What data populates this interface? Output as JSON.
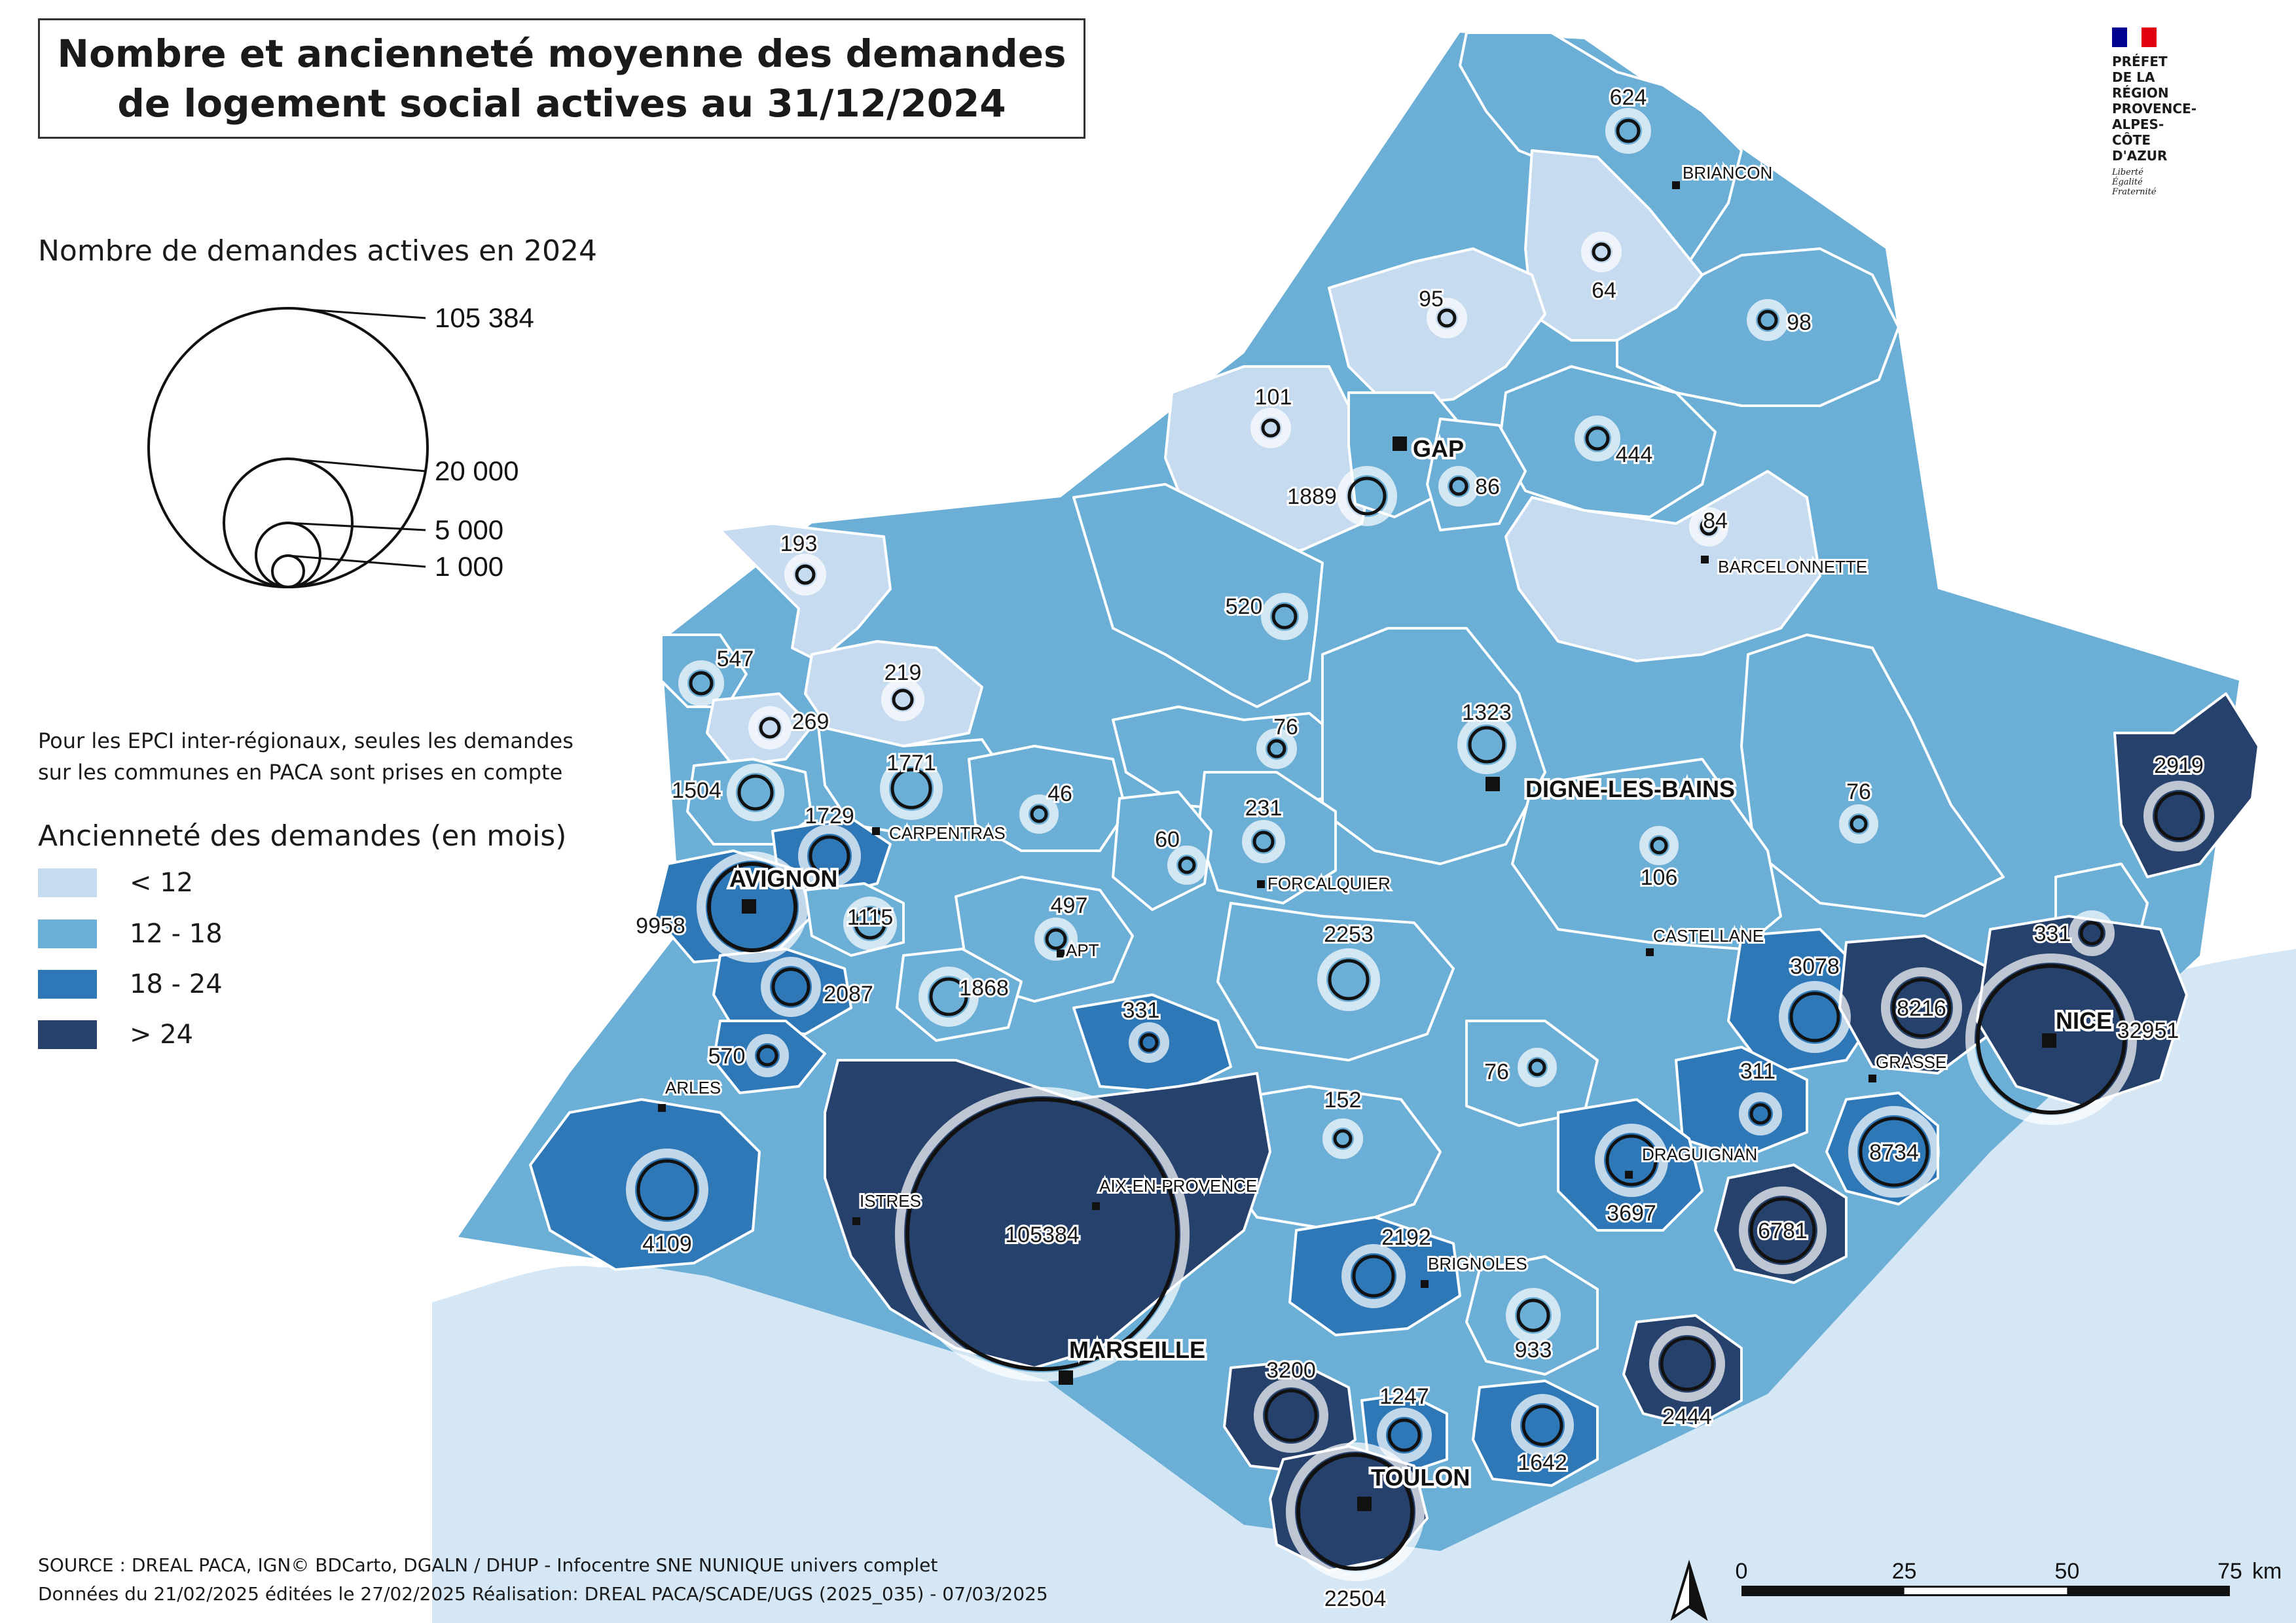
{
  "title": {
    "line1": "Nombre et ancienneté moyenne des demandes",
    "line2": "de logement social actives au 31/12/2024"
  },
  "logo": {
    "organization": "PRÉFET\nDE LA RÉGION\nPROVENCE-ALPES-\nCÔTE D'AZUR",
    "motto": "Liberté\nÉgalité\nFraternité",
    "flag_colors": [
      "#000091",
      "#ffffff",
      "#e1000f"
    ]
  },
  "legend_size": {
    "title": "Nombre de demandes actives en 2024",
    "items": [
      {
        "value": 105384,
        "label": "105 384"
      },
      {
        "value": 20000,
        "label": "20 000"
      },
      {
        "value": 5000,
        "label": "5 000"
      },
      {
        "value": 1000,
        "label": "1 000"
      }
    ]
  },
  "note": {
    "line1": "Pour les EPCI inter-régionaux, seules les demandes",
    "line2": "sur les communes en PACA sont prises en compte"
  },
  "legend_age": {
    "title": "Ancienneté des demandes (en mois)",
    "classes": [
      {
        "label": "< 12",
        "color": "#c6dbef"
      },
      {
        "label": "12 - 18",
        "color": "#6baed6"
      },
      {
        "label": "18 - 24",
        "color": "#2f78b8"
      },
      {
        "label": "> 24",
        "color": "#26416b"
      }
    ]
  },
  "colors": {
    "sea": "#d5e7f5",
    "land_outside": "#ffffff",
    "border": "#ffffff",
    "circle_stroke": "#111111"
  },
  "epci": [
    {
      "value": 624,
      "label": "624",
      "class": 1
    },
    {
      "value": 64,
      "label": "64",
      "class": 0
    },
    {
      "value": 95,
      "label": "95",
      "class": 0
    },
    {
      "value": 98,
      "label": "98",
      "class": 1
    },
    {
      "value": 101,
      "label": "101",
      "class": 0
    },
    {
      "value": 444,
      "label": "444",
      "class": 1
    },
    {
      "value": 1889,
      "label": "1889",
      "class": 1
    },
    {
      "value": 86,
      "label": "86",
      "class": 1
    },
    {
      "value": 84,
      "label": "84",
      "class": 0
    },
    {
      "value": 193,
      "label": "193",
      "class": 0
    },
    {
      "value": 520,
      "label": "520",
      "class": 1
    },
    {
      "value": 547,
      "label": "547",
      "class": 1
    },
    {
      "value": 219,
      "label": "219",
      "class": 0
    },
    {
      "value": 269,
      "label": "269",
      "class": 0
    },
    {
      "value": 1771,
      "label": "1771",
      "class": 1
    },
    {
      "value": 1504,
      "label": "1504",
      "class": 1
    },
    {
      "value": 1729,
      "label": "1729",
      "class": 2
    },
    {
      "value": 46,
      "label": "46",
      "class": 1
    },
    {
      "value": 76,
      "label": "76",
      "class": 1
    },
    {
      "value": 1323,
      "label": "1323",
      "class": 1
    },
    {
      "value": 231,
      "label": "231",
      "class": 1
    },
    {
      "value": 60,
      "label": "60",
      "class": 1
    },
    {
      "value": 76,
      "label": "76",
      "class": 1
    },
    {
      "value": 106,
      "label": "106",
      "class": 1
    },
    {
      "value": 2919,
      "label": "2919",
      "class": 3
    },
    {
      "value": 9958,
      "label": "9958",
      "class": 2
    },
    {
      "value": 1115,
      "label": "1115",
      "class": 1
    },
    {
      "value": 497,
      "label": "497",
      "class": 1
    },
    {
      "value": 2253,
      "label": "2253",
      "class": 1
    },
    {
      "value": 331,
      "label": "331",
      "class": 1
    },
    {
      "value": 2087,
      "label": "2087",
      "class": 2
    },
    {
      "value": 1868,
      "label": "1868",
      "class": 1
    },
    {
      "value": 331,
      "label": "331",
      "class": 2
    },
    {
      "value": 3078,
      "label": "3078",
      "class": 2
    },
    {
      "value": 8216,
      "label": "8216",
      "class": 3
    },
    {
      "value": 32951,
      "label": "32951",
      "class": 3
    },
    {
      "value": 570,
      "label": "570",
      "class": 2
    },
    {
      "value": 76,
      "label": "76",
      "class": 1
    },
    {
      "value": 311,
      "label": "311",
      "class": 2
    },
    {
      "value": 152,
      "label": "152",
      "class": 1
    },
    {
      "value": 8734,
      "label": "8734",
      "class": 2
    },
    {
      "value": 4109,
      "label": "4109",
      "class": 2
    },
    {
      "value": 105384,
      "label": "105384",
      "class": 3
    },
    {
      "value": 3697,
      "label": "3697",
      "class": 2
    },
    {
      "value": 6781,
      "label": "6781",
      "class": 3
    },
    {
      "value": 2192,
      "label": "2192",
      "class": 2
    },
    {
      "value": 933,
      "label": "933",
      "class": 1
    },
    {
      "value": 3200,
      "label": "3200",
      "class": 3
    },
    {
      "value": 2444,
      "label": "2444",
      "class": 3
    },
    {
      "value": 1247,
      "label": "1247",
      "class": 2
    },
    {
      "value": 1642,
      "label": "1642",
      "class": 2
    },
    {
      "value": 22504,
      "label": "22504",
      "class": 3
    }
  ],
  "cities": [
    {
      "name": "BRIANCON",
      "type": "small"
    },
    {
      "name": "GAP",
      "type": "prefecture"
    },
    {
      "name": "BARCELONNETTE",
      "type": "small"
    },
    {
      "name": "CARPENTRAS",
      "type": "small"
    },
    {
      "name": "DIGNE-LES-BAINS",
      "type": "prefecture"
    },
    {
      "name": "FORCALQUIER",
      "type": "small"
    },
    {
      "name": "AVIGNON",
      "type": "prefecture"
    },
    {
      "name": "APT",
      "type": "small"
    },
    {
      "name": "CASTELLANE",
      "type": "small"
    },
    {
      "name": "NICE",
      "type": "prefecture"
    },
    {
      "name": "GRASSE",
      "type": "small"
    },
    {
      "name": "ARLES",
      "type": "small"
    },
    {
      "name": "DRAGUIGNAN",
      "type": "small"
    },
    {
      "name": "ISTRES",
      "type": "small"
    },
    {
      "name": "AIX-EN-PROVENCE",
      "type": "small"
    },
    {
      "name": "BRIGNOLES",
      "type": "small"
    },
    {
      "name": "MARSEILLE",
      "type": "prefecture"
    },
    {
      "name": "TOULON",
      "type": "prefecture"
    }
  ],
  "scale_bar": {
    "ticks": [
      "0",
      "25",
      "50",
      "75"
    ],
    "unit": "km"
  },
  "footer": {
    "line1": "SOURCE : DREAL PACA, IGN© BDCarto, DGALN / DHUP - Infocentre SNE NUNIQUE univers complet",
    "line2": "Données du 21/02/2025 éditées le 27/02/2025 Réalisation: DREAL PACA/SCADE/UGS (2025_035) - 07/03/2025"
  }
}
